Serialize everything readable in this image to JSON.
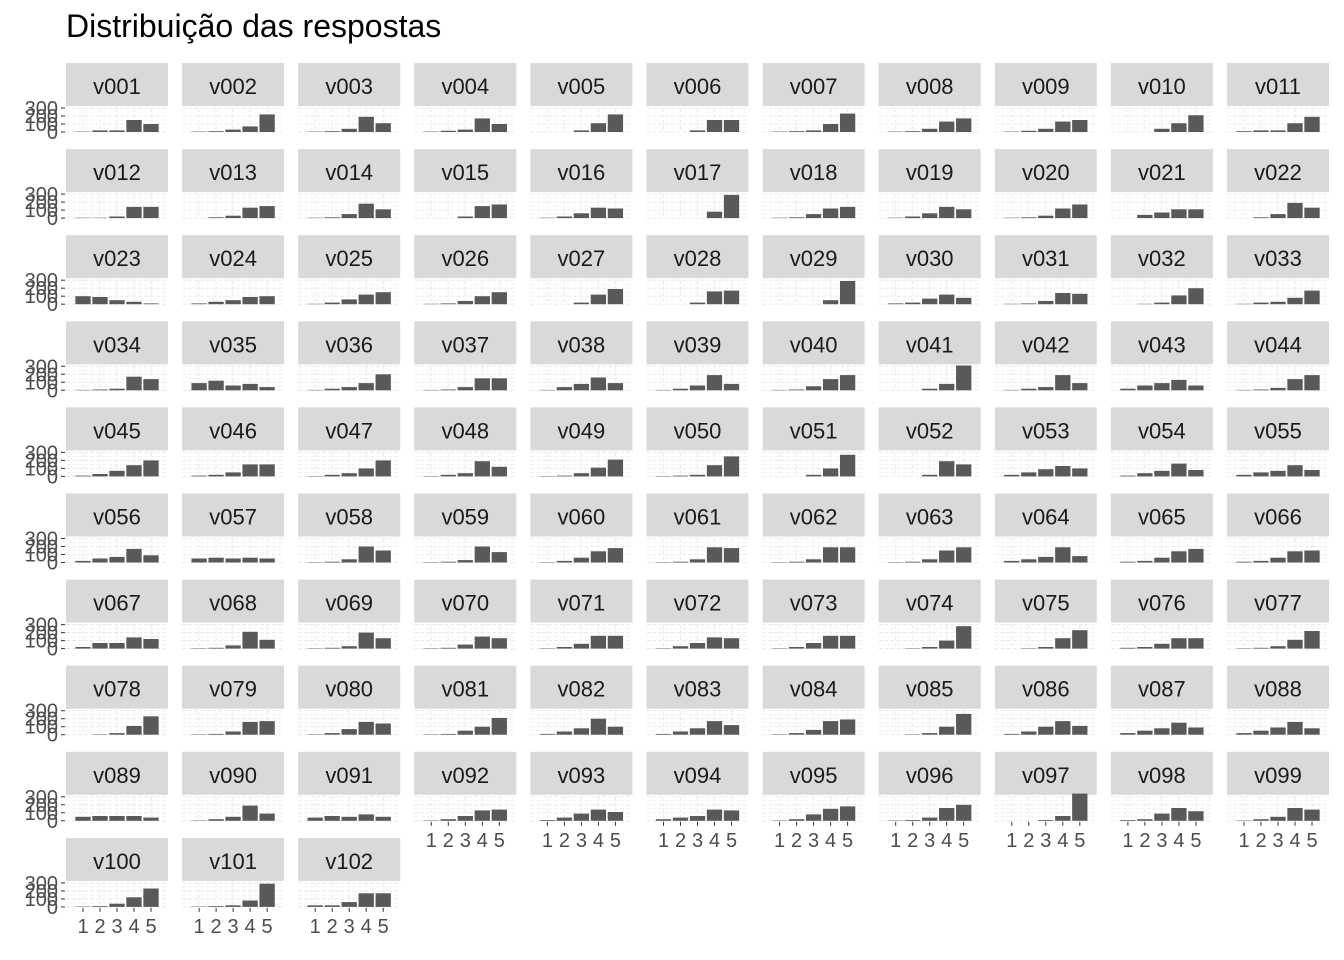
{
  "chart_data": {
    "type": "bar",
    "title": "Distribuição das respostas",
    "xlabel": "",
    "ylabel": "",
    "categories": [
      "1",
      "2",
      "3",
      "4",
      "5"
    ],
    "ylim": [
      0,
      300
    ],
    "y_ticks": [
      0,
      100,
      200,
      300
    ],
    "grid": true,
    "layout": "faceted 11 columns",
    "colors": {
      "bar": "#595959",
      "strip": "#d9d9d9",
      "panel": "#ffffff",
      "grid": "#ebebeb"
    },
    "series": [
      {
        "name": "v001",
        "values": [
          5,
          20,
          20,
          150,
          100
        ]
      },
      {
        "name": "v002",
        "values": [
          5,
          10,
          30,
          70,
          220
        ]
      },
      {
        "name": "v003",
        "values": [
          5,
          10,
          40,
          190,
          110
        ]
      },
      {
        "name": "v004",
        "values": [
          5,
          15,
          30,
          170,
          100
        ]
      },
      {
        "name": "v005",
        "values": [
          0,
          0,
          20,
          110,
          220
        ]
      },
      {
        "name": "v006",
        "values": [
          0,
          0,
          20,
          150,
          150
        ]
      },
      {
        "name": "v007",
        "values": [
          5,
          10,
          20,
          100,
          230
        ]
      },
      {
        "name": "v008",
        "values": [
          5,
          10,
          40,
          130,
          170
        ]
      },
      {
        "name": "v009",
        "values": [
          5,
          15,
          40,
          130,
          150
        ]
      },
      {
        "name": "v010",
        "values": [
          0,
          0,
          40,
          110,
          210
        ]
      },
      {
        "name": "v011",
        "values": [
          10,
          20,
          20,
          110,
          190
        ]
      },
      {
        "name": "v012",
        "values": [
          5,
          5,
          20,
          140,
          140
        ]
      },
      {
        "name": "v013",
        "values": [
          0,
          10,
          30,
          130,
          150
        ]
      },
      {
        "name": "v014",
        "values": [
          5,
          10,
          50,
          180,
          110
        ]
      },
      {
        "name": "v015",
        "values": [
          0,
          0,
          20,
          150,
          170
        ]
      },
      {
        "name": "v016",
        "values": [
          5,
          20,
          60,
          130,
          120
        ]
      },
      {
        "name": "v017",
        "values": [
          0,
          0,
          0,
          80,
          290
        ]
      },
      {
        "name": "v018",
        "values": [
          5,
          10,
          50,
          120,
          140
        ]
      },
      {
        "name": "v019",
        "values": [
          5,
          20,
          60,
          140,
          110
        ]
      },
      {
        "name": "v020",
        "values": [
          5,
          10,
          30,
          120,
          170
        ]
      },
      {
        "name": "v021",
        "values": [
          0,
          40,
          70,
          110,
          110
        ]
      },
      {
        "name": "v022",
        "values": [
          0,
          10,
          50,
          190,
          130
        ]
      },
      {
        "name": "v023",
        "values": [
          100,
          90,
          50,
          30,
          10
        ]
      },
      {
        "name": "v024",
        "values": [
          10,
          30,
          50,
          90,
          100
        ]
      },
      {
        "name": "v025",
        "values": [
          5,
          20,
          60,
          120,
          150
        ]
      },
      {
        "name": "v026",
        "values": [
          5,
          10,
          40,
          100,
          150
        ]
      },
      {
        "name": "v027",
        "values": [
          0,
          0,
          20,
          120,
          190
        ]
      },
      {
        "name": "v028",
        "values": [
          0,
          0,
          20,
          160,
          170
        ]
      },
      {
        "name": "v029",
        "values": [
          0,
          0,
          0,
          50,
          290
        ]
      },
      {
        "name": "v030",
        "values": [
          10,
          20,
          70,
          120,
          80
        ]
      },
      {
        "name": "v031",
        "values": [
          5,
          10,
          40,
          140,
          130
        ]
      },
      {
        "name": "v032",
        "values": [
          0,
          5,
          20,
          110,
          200
        ]
      },
      {
        "name": "v033",
        "values": [
          5,
          20,
          30,
          80,
          170
        ]
      },
      {
        "name": "v034",
        "values": [
          5,
          10,
          20,
          170,
          140
        ]
      },
      {
        "name": "v035",
        "values": [
          90,
          120,
          60,
          80,
          40
        ]
      },
      {
        "name": "v036",
        "values": [
          5,
          20,
          40,
          90,
          200
        ]
      },
      {
        "name": "v037",
        "values": [
          5,
          10,
          40,
          150,
          150
        ]
      },
      {
        "name": "v038",
        "values": [
          5,
          40,
          80,
          160,
          90
        ]
      },
      {
        "name": "v039",
        "values": [
          5,
          20,
          60,
          190,
          80
        ]
      },
      {
        "name": "v040",
        "values": [
          5,
          10,
          50,
          140,
          190
        ]
      },
      {
        "name": "v041",
        "values": [
          0,
          0,
          20,
          80,
          310
        ]
      },
      {
        "name": "v042",
        "values": [
          5,
          20,
          40,
          190,
          90
        ]
      },
      {
        "name": "v043",
        "values": [
          20,
          60,
          90,
          130,
          60
        ]
      },
      {
        "name": "v044",
        "values": [
          5,
          10,
          30,
          140,
          190
        ]
      },
      {
        "name": "v045",
        "values": [
          10,
          30,
          70,
          140,
          200
        ]
      },
      {
        "name": "v046",
        "values": [
          10,
          20,
          50,
          150,
          150
        ]
      },
      {
        "name": "v047",
        "values": [
          5,
          20,
          40,
          100,
          200
        ]
      },
      {
        "name": "v048",
        "values": [
          5,
          20,
          40,
          190,
          120
        ]
      },
      {
        "name": "v049",
        "values": [
          5,
          10,
          40,
          110,
          210
        ]
      },
      {
        "name": "v050",
        "values": [
          5,
          10,
          20,
          140,
          250
        ]
      },
      {
        "name": "v051",
        "values": [
          0,
          0,
          20,
          100,
          270
        ]
      },
      {
        "name": "v052",
        "values": [
          0,
          0,
          20,
          190,
          150
        ]
      },
      {
        "name": "v053",
        "values": [
          20,
          50,
          90,
          130,
          100
        ]
      },
      {
        "name": "v054",
        "values": [
          10,
          40,
          70,
          160,
          80
        ]
      },
      {
        "name": "v055",
        "values": [
          20,
          50,
          70,
          140,
          80
        ]
      },
      {
        "name": "v056",
        "values": [
          20,
          50,
          70,
          170,
          90
        ]
      },
      {
        "name": "v057",
        "values": [
          50,
          60,
          50,
          60,
          50
        ]
      },
      {
        "name": "v058",
        "values": [
          5,
          10,
          40,
          200,
          150
        ]
      },
      {
        "name": "v059",
        "values": [
          5,
          10,
          30,
          200,
          130
        ]
      },
      {
        "name": "v060",
        "values": [
          5,
          20,
          60,
          140,
          180
        ]
      },
      {
        "name": "v061",
        "values": [
          5,
          10,
          40,
          190,
          180
        ]
      },
      {
        "name": "v062",
        "values": [
          5,
          10,
          40,
          190,
          190
        ]
      },
      {
        "name": "v063",
        "values": [
          5,
          10,
          40,
          150,
          190
        ]
      },
      {
        "name": "v064",
        "values": [
          20,
          40,
          70,
          190,
          80
        ]
      },
      {
        "name": "v065",
        "values": [
          10,
          20,
          60,
          140,
          170
        ]
      },
      {
        "name": "v066",
        "values": [
          10,
          20,
          60,
          140,
          150
        ]
      },
      {
        "name": "v067",
        "values": [
          20,
          70,
          70,
          140,
          120
        ]
      },
      {
        "name": "v068",
        "values": [
          5,
          10,
          40,
          210,
          110
        ]
      },
      {
        "name": "v069",
        "values": [
          5,
          10,
          30,
          200,
          130
        ]
      },
      {
        "name": "v070",
        "values": [
          5,
          10,
          50,
          150,
          130
        ]
      },
      {
        "name": "v071",
        "values": [
          5,
          20,
          60,
          160,
          160
        ]
      },
      {
        "name": "v072",
        "values": [
          5,
          30,
          70,
          140,
          130
        ]
      },
      {
        "name": "v073",
        "values": [
          5,
          20,
          70,
          160,
          160
        ]
      },
      {
        "name": "v074",
        "values": [
          0,
          5,
          20,
          100,
          280
        ]
      },
      {
        "name": "v075",
        "values": [
          0,
          5,
          20,
          130,
          230
        ]
      },
      {
        "name": "v076",
        "values": [
          10,
          20,
          60,
          130,
          130
        ]
      },
      {
        "name": "v077",
        "values": [
          5,
          10,
          30,
          110,
          220
        ]
      },
      {
        "name": "v078",
        "values": [
          0,
          5,
          20,
          110,
          230
        ]
      },
      {
        "name": "v079",
        "values": [
          5,
          10,
          40,
          160,
          170
        ]
      },
      {
        "name": "v080",
        "values": [
          5,
          20,
          70,
          160,
          140
        ]
      },
      {
        "name": "v081",
        "values": [
          5,
          10,
          50,
          100,
          210
        ]
      },
      {
        "name": "v082",
        "values": [
          10,
          40,
          80,
          200,
          100
        ]
      },
      {
        "name": "v083",
        "values": [
          10,
          40,
          80,
          170,
          120
        ]
      },
      {
        "name": "v084",
        "values": [
          5,
          20,
          60,
          170,
          190
        ]
      },
      {
        "name": "v085",
        "values": [
          0,
          5,
          20,
          100,
          260
        ]
      },
      {
        "name": "v086",
        "values": [
          10,
          40,
          100,
          170,
          110
        ]
      },
      {
        "name": "v087",
        "values": [
          20,
          50,
          80,
          150,
          90
        ]
      },
      {
        "name": "v088",
        "values": [
          20,
          50,
          90,
          160,
          80
        ]
      },
      {
        "name": "v089",
        "values": [
          50,
          60,
          60,
          60,
          40
        ]
      },
      {
        "name": "v090",
        "values": [
          5,
          20,
          50,
          190,
          90
        ]
      },
      {
        "name": "v091",
        "values": [
          40,
          60,
          50,
          80,
          50
        ]
      },
      {
        "name": "v092",
        "values": [
          5,
          20,
          60,
          130,
          140
        ]
      },
      {
        "name": "v093",
        "values": [
          10,
          40,
          90,
          140,
          110
        ]
      },
      {
        "name": "v094",
        "values": [
          20,
          40,
          60,
          140,
          130
        ]
      },
      {
        "name": "v095",
        "values": [
          5,
          20,
          80,
          150,
          180
        ]
      },
      {
        "name": "v096",
        "values": [
          5,
          10,
          40,
          160,
          200
        ]
      },
      {
        "name": "v097",
        "values": [
          0,
          0,
          10,
          60,
          340
        ]
      },
      {
        "name": "v098",
        "values": [
          10,
          20,
          90,
          160,
          120
        ]
      },
      {
        "name": "v099",
        "values": [
          5,
          20,
          50,
          160,
          140
        ]
      },
      {
        "name": "v100",
        "values": [
          5,
          10,
          40,
          120,
          230
        ]
      },
      {
        "name": "v101",
        "values": [
          5,
          10,
          20,
          80,
          290
        ]
      },
      {
        "name": "v102",
        "values": [
          20,
          20,
          60,
          170,
          170
        ]
      }
    ]
  }
}
